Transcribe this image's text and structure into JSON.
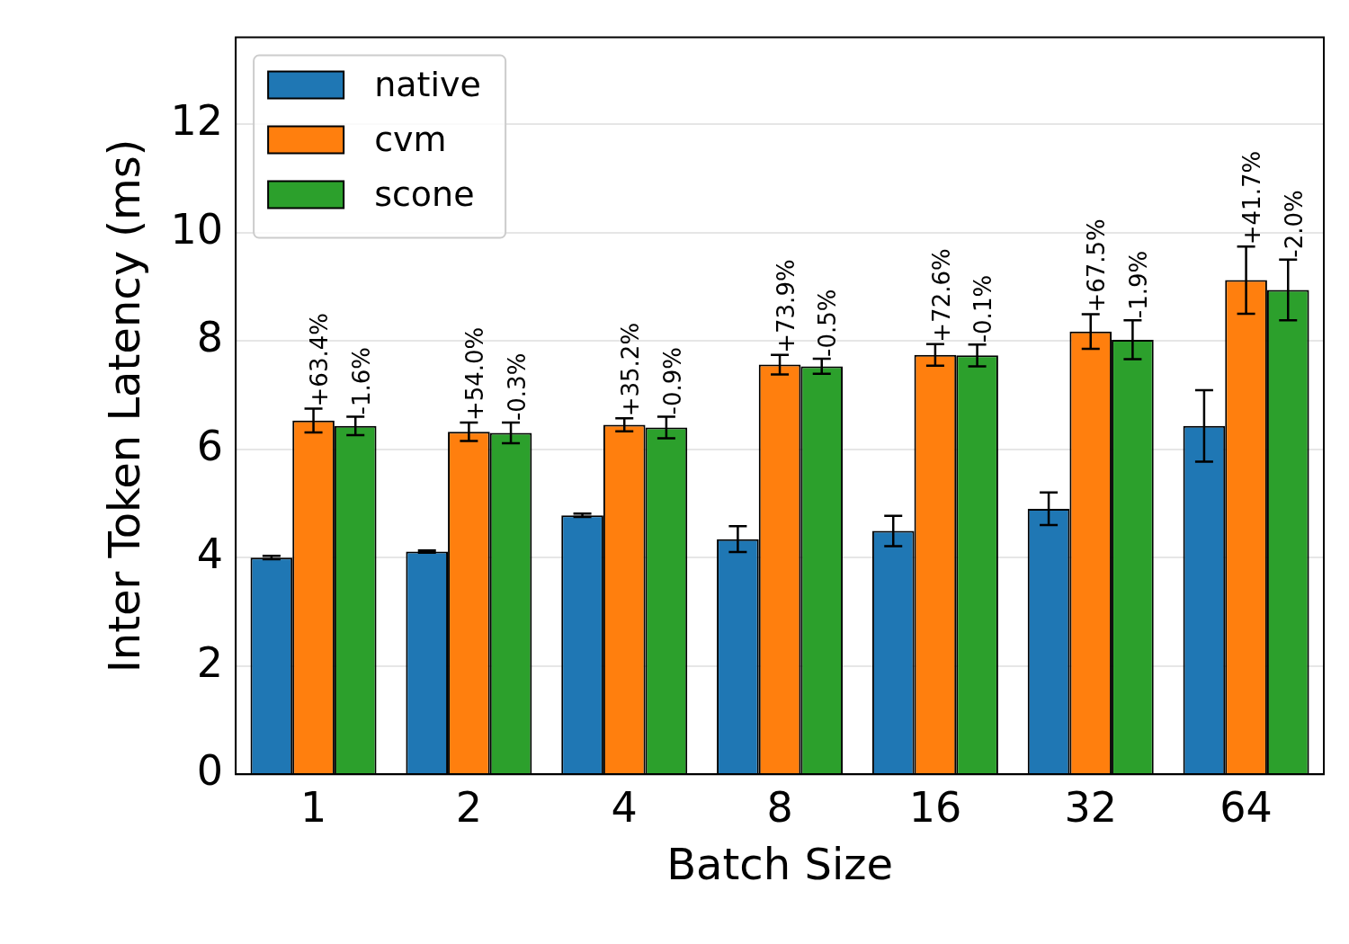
{
  "chart_data": {
    "type": "bar",
    "xlabel": "Batch Size",
    "ylabel": "Inter Token Latency (ms)",
    "categories": [
      "1",
      "2",
      "4",
      "8",
      "16",
      "32",
      "64"
    ],
    "series": [
      {
        "name": "native",
        "color": "#1f77b4",
        "values": [
          4.0,
          4.11,
          4.78,
          4.34,
          4.49,
          4.9,
          6.43
        ],
        "errors": [
          0.03,
          0.02,
          0.03,
          0.24,
          0.28,
          0.3,
          0.66
        ]
      },
      {
        "name": "cvm",
        "color": "#ff7f0e",
        "values": [
          6.53,
          6.32,
          6.45,
          7.56,
          7.74,
          8.17,
          9.12
        ],
        "errors": [
          0.22,
          0.17,
          0.12,
          0.18,
          0.2,
          0.32,
          0.62
        ]
      },
      {
        "name": "scone",
        "color": "#2ca02c",
        "values": [
          6.43,
          6.3,
          6.4,
          7.53,
          7.73,
          8.02,
          8.94
        ],
        "errors": [
          0.17,
          0.19,
          0.2,
          0.14,
          0.2,
          0.36,
          0.56
        ]
      }
    ],
    "annotations": [
      {
        "text": "+63.4%",
        "x": "1",
        "y": 6.53
      },
      {
        "text": "-1.6%",
        "x": "1",
        "y": 6.43
      },
      {
        "text": "+54.0%",
        "x": "2",
        "y": 6.32
      },
      {
        "text": "-0.3%",
        "x": "2",
        "y": 6.3
      },
      {
        "text": "+35.2%",
        "x": "4",
        "y": 6.45
      },
      {
        "text": "-0.9%",
        "x": "4",
        "y": 6.4
      },
      {
        "text": "+73.9%",
        "x": "8",
        "y": 7.56
      },
      {
        "text": "-0.5%",
        "x": "8",
        "y": 7.53
      },
      {
        "text": "+72.6%",
        "x": "16",
        "y": 7.74
      },
      {
        "text": "-0.1%",
        "x": "16",
        "y": 7.73
      },
      {
        "text": "+67.5%",
        "x": "32",
        "y": 8.17
      },
      {
        "text": "-1.9%",
        "x": "32",
        "y": 8.02
      },
      {
        "text": "+41.7%",
        "x": "64",
        "y": 9.12
      },
      {
        "text": "-2.0%",
        "x": "64",
        "y": 8.94
      }
    ],
    "ylim": [
      0,
      13.6
    ],
    "yticks": [
      0,
      2,
      4,
      6,
      8,
      10,
      12
    ],
    "grid": "y",
    "legend": "top left"
  }
}
